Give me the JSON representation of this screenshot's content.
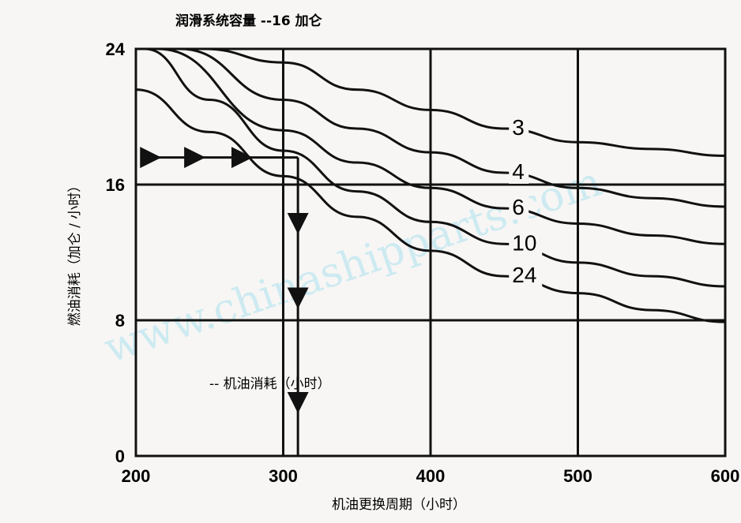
{
  "watermark": "www.chinashipparts.com",
  "chart_data": {
    "type": "line",
    "title": "润滑系统容量 --16 加仑",
    "xlabel": "机油更换周期（小时）",
    "ylabel": "燃油消耗（加仑 / 小时）",
    "xlim": [
      200,
      600
    ],
    "ylim": [
      0,
      24
    ],
    "x_ticks": [
      "200",
      "300",
      "400",
      "500",
      "600"
    ],
    "y_ticks": [
      "0",
      "8",
      "16",
      "24"
    ],
    "grid": true,
    "series": [
      {
        "name": "3",
        "points": [
          [
            246,
            24
          ],
          [
            300,
            23.2
          ],
          [
            350,
            21.6
          ],
          [
            400,
            20.4
          ],
          [
            450,
            19.3
          ],
          [
            500,
            18.5
          ],
          [
            550,
            18.1
          ],
          [
            600,
            17.7
          ]
        ]
      },
      {
        "name": "4",
        "points": [
          [
            230,
            24
          ],
          [
            300,
            21.0
          ],
          [
            350,
            19.3
          ],
          [
            400,
            17.9
          ],
          [
            450,
            16.7
          ],
          [
            500,
            15.8
          ],
          [
            550,
            15.2
          ],
          [
            600,
            14.7
          ]
        ]
      },
      {
        "name": "6",
        "points": [
          [
            215,
            24
          ],
          [
            300,
            19.2
          ],
          [
            350,
            17.3
          ],
          [
            400,
            15.8
          ],
          [
            450,
            14.6
          ],
          [
            500,
            13.7
          ],
          [
            550,
            13.0
          ],
          [
            600,
            12.5
          ]
        ]
      },
      {
        "name": "10",
        "points": [
          [
            206,
            24
          ],
          [
            250,
            21.0
          ],
          [
            300,
            18.0
          ],
          [
            350,
            15.6
          ],
          [
            400,
            13.8
          ],
          [
            450,
            12.5
          ],
          [
            500,
            11.4
          ],
          [
            550,
            10.6
          ],
          [
            600,
            10.0
          ]
        ]
      },
      {
        "name": "24",
        "points": [
          [
            200,
            21.6
          ],
          [
            250,
            19.1
          ],
          [
            300,
            16.5
          ],
          [
            350,
            14.1
          ],
          [
            400,
            12.1
          ],
          [
            450,
            10.6
          ],
          [
            500,
            9.6
          ],
          [
            550,
            8.6
          ],
          [
            600,
            7.9
          ]
        ]
      }
    ],
    "annotation": {
      "text": "-- 机油消耗（小时）",
      "example_path": {
        "start": [
          203,
          17.6
        ],
        "end_x": 310
      }
    }
  }
}
